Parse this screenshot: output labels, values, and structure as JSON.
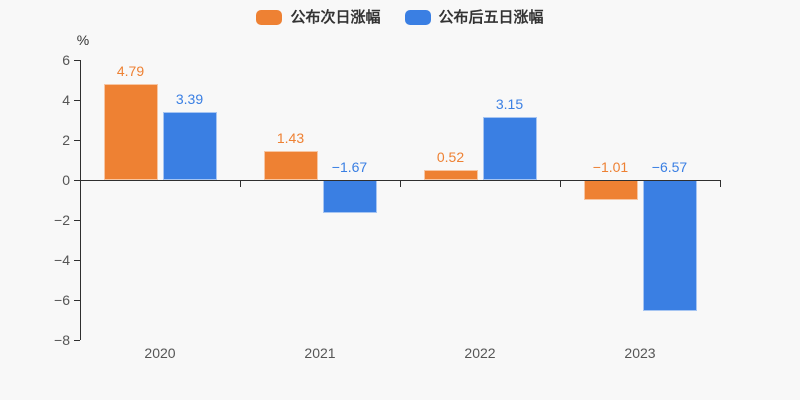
{
  "chart_data": {
    "type": "bar",
    "title": "",
    "ylabel": "%",
    "categories": [
      "2020",
      "2021",
      "2022",
      "2023"
    ],
    "series": [
      {
        "name": "公布次日涨幅",
        "color": "#ee8133",
        "values": [
          4.79,
          1.43,
          0.52,
          -1.01
        ],
        "labels": [
          "4.79",
          "1.43",
          "0.52",
          "−1.01"
        ]
      },
      {
        "name": "公布后五日涨幅",
        "color": "#3a7fe3",
        "values": [
          3.39,
          -1.67,
          3.15,
          -6.57
        ],
        "labels": [
          "3.39",
          "−1.67",
          "3.15",
          "−6.57"
        ]
      }
    ],
    "yticks": [
      6,
      4,
      2,
      0,
      -2,
      -4,
      -6,
      -8
    ],
    "ytick_labels": [
      "6",
      "4",
      "2",
      "0",
      "−2",
      "−4",
      "−6",
      "−8"
    ],
    "ylim": [
      -8,
      6
    ],
    "grid": false,
    "legend_position": "top",
    "value_labels_shown": true
  },
  "colors": {
    "background": "#f8f8f8",
    "axis": "#2f2f2f",
    "tick_label": "#555555",
    "legend_text": "#333333"
  }
}
